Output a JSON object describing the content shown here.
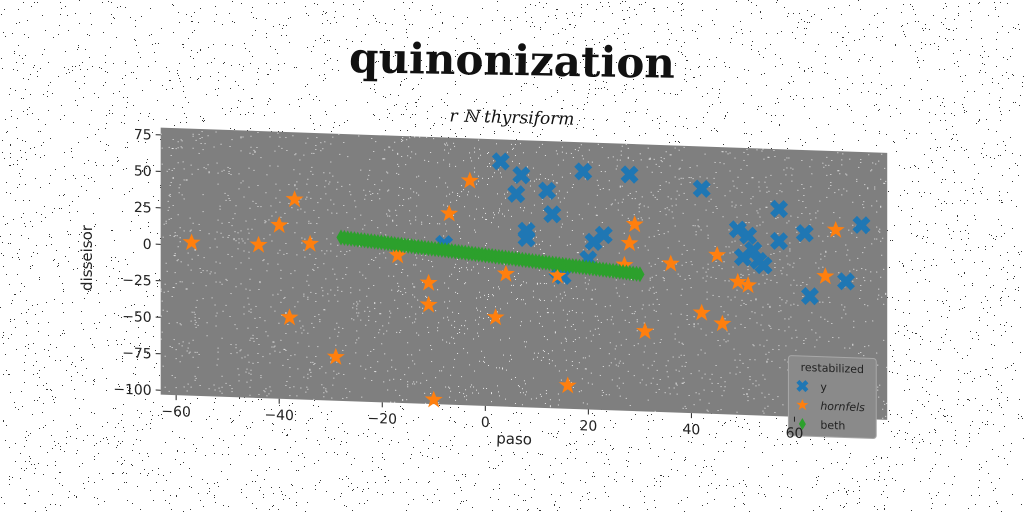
{
  "chart_data": {
    "type": "scatter",
    "title": "quinonization",
    "subtitle": "r ℕ thyrsiform",
    "xlabel": "paso",
    "ylabel": "disseisor",
    "xlim": [
      -63,
      78
    ],
    "ylim": [
      -103,
      80
    ],
    "xticks": [
      -60,
      -40,
      -20,
      0,
      20,
      40,
      60
    ],
    "yticks": [
      75,
      50,
      25,
      0,
      -25,
      -50,
      -75,
      -100
    ],
    "legend": {
      "title": "restabilized",
      "position": "lower-right"
    },
    "series": [
      {
        "name": "y",
        "marker": "x",
        "color": "#1f77b4",
        "points": [
          [
            3,
            65
          ],
          [
            7,
            56
          ],
          [
            6,
            43
          ],
          [
            12,
            46
          ],
          [
            13,
            30
          ],
          [
            8,
            18
          ],
          [
            8,
            13
          ],
          [
            19,
            60
          ],
          [
            28,
            59
          ],
          [
            23,
            17
          ],
          [
            21,
            12
          ],
          [
            20,
            0
          ],
          [
            14,
            -8
          ],
          [
            15,
            -12
          ],
          [
            42,
            51
          ],
          [
            49,
            24
          ],
          [
            51,
            20
          ],
          [
            52,
            10
          ],
          [
            50,
            5
          ],
          [
            53,
            3
          ],
          [
            54,
            0
          ],
          [
            57,
            39
          ],
          [
            57,
            17
          ],
          [
            62,
            23
          ],
          [
            63,
            -20
          ],
          [
            70,
            -9
          ],
          [
            73,
            30
          ],
          [
            -8,
            7
          ]
        ]
      },
      {
        "name": "hornfels",
        "marker": "*",
        "color": "#ff7f0e",
        "points": [
          [
            -57,
            2
          ],
          [
            -44,
            2
          ],
          [
            -40,
            16
          ],
          [
            -37,
            34
          ],
          [
            -34,
            4
          ],
          [
            -38,
            -47
          ],
          [
            -29,
            -73
          ],
          [
            -3,
            51
          ],
          [
            -7,
            28
          ],
          [
            -17,
            4
          ],
          [
            -17,
            -2
          ],
          [
            -11,
            -20
          ],
          [
            -11,
            -35
          ],
          [
            -10,
            -100
          ],
          [
            2,
            -42
          ],
          [
            4,
            -12
          ],
          [
            14,
            -12
          ],
          [
            27,
            -3
          ],
          [
            28,
            12
          ],
          [
            29,
            25
          ],
          [
            36,
            -1
          ],
          [
            31,
            -48
          ],
          [
            16,
            -87
          ],
          [
            42,
            -34
          ],
          [
            45,
            6
          ],
          [
            46,
            -41
          ],
          [
            49,
            -12
          ],
          [
            51,
            -14
          ],
          [
            66,
            -6
          ],
          [
            68,
            26
          ]
        ]
      },
      {
        "name": "beth",
        "marker": "d",
        "color": "#2ca02c",
        "x_start": -28,
        "x_end": 30,
        "y_start": 9,
        "y_end": -9,
        "count": 90
      }
    ]
  }
}
